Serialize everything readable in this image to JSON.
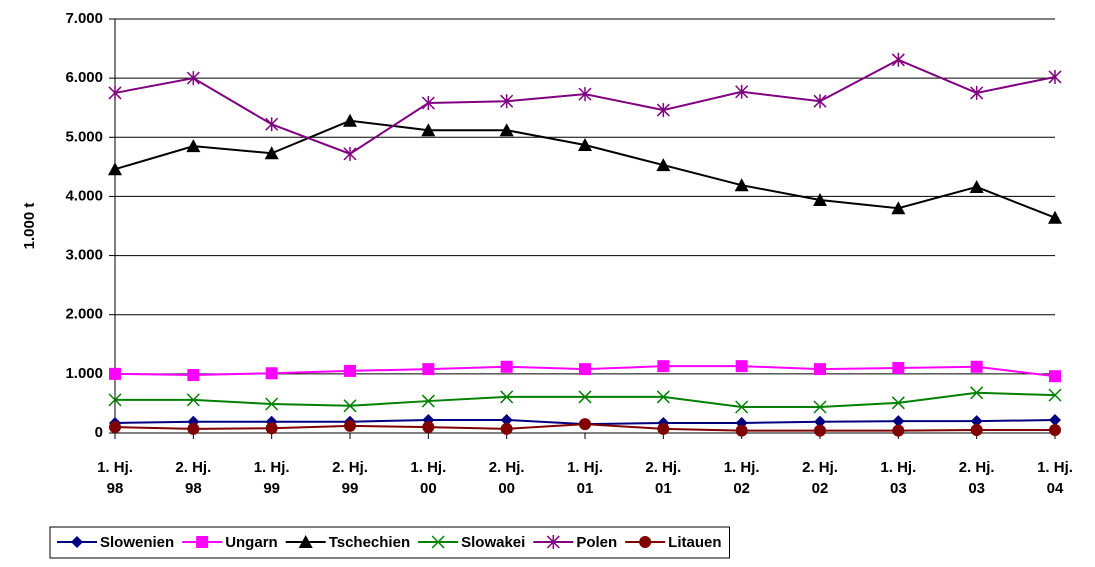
{
  "chart_data": {
    "type": "line",
    "y_label": "1.000 t",
    "categories": [
      "1. Hj.\n98",
      "2. Hj.\n98",
      "1. Hj.\n99",
      "2. Hj.\n99",
      "1. Hj.\n00",
      "2. Hj.\n00",
      "1. Hj.\n01",
      "2. Hj.\n01",
      "1. Hj.\n02",
      "2. Hj.\n02",
      "1. Hj.\n03",
      "2. Hj.\n03",
      "1. Hj.\n04"
    ],
    "series": [
      {
        "name": "Slowenien",
        "color": "#000080",
        "marker": "diamond",
        "values": [
          170,
          190,
          190,
          190,
          220,
          220,
          150,
          170,
          170,
          190,
          200,
          200,
          220
        ]
      },
      {
        "name": "Ungarn",
        "color": "#ff00ff",
        "marker": "square",
        "values": [
          1000,
          980,
          1010,
          1050,
          1080,
          1120,
          1080,
          1130,
          1130,
          1080,
          1100,
          1120,
          960
        ]
      },
      {
        "name": "Tschechien",
        "color": "#000000",
        "marker": "triangle",
        "values": [
          4460,
          4850,
          4730,
          5280,
          5120,
          5120,
          4870,
          4530,
          4190,
          3940,
          3800,
          4160,
          3640
        ]
      },
      {
        "name": "Slowakei",
        "color": "#008000",
        "marker": "x",
        "values": [
          560,
          560,
          490,
          460,
          540,
          610,
          610,
          610,
          440,
          440,
          510,
          680,
          640
        ]
      },
      {
        "name": "Polen",
        "color": "#800080",
        "marker": "asterisk",
        "values": [
          5750,
          6000,
          5220,
          4720,
          5580,
          5610,
          5730,
          5460,
          5770,
          5610,
          6310,
          5750,
          6020
        ]
      },
      {
        "name": "Litauen",
        "color": "#800000",
        "marker": "circle",
        "values": [
          100,
          70,
          80,
          120,
          100,
          70,
          150,
          70,
          40,
          40,
          40,
          50,
          50
        ]
      }
    ],
    "ylim": [
      0,
      7000
    ],
    "yticks": [
      0,
      {
        "value": 1000,
        "label": "1.000"
      },
      {
        "value": 2000,
        "label": "2.000"
      },
      {
        "value": 3000,
        "label": "3.000"
      },
      {
        "value": 4000,
        "label": "4.000"
      },
      {
        "value": 5000,
        "label": "5.000"
      },
      {
        "value": 6000,
        "label": "6.000"
      },
      {
        "value": 7000,
        "label": "7.000"
      }
    ],
    "grid": true,
    "legend": "bottom"
  }
}
